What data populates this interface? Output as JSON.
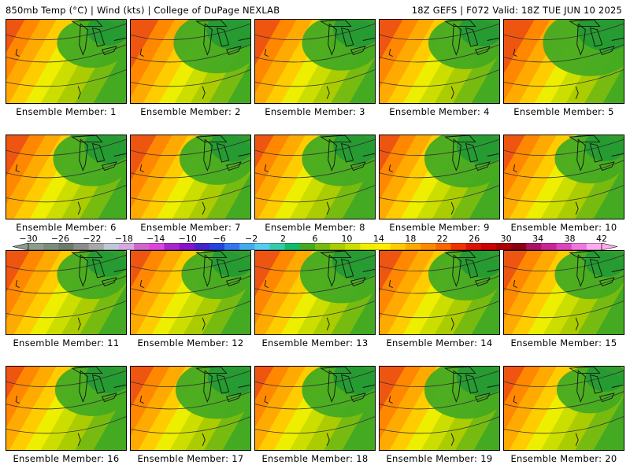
{
  "header": {
    "left": "850mb Temp (°C) | Wind (kts) | College of DuPage NEXLAB",
    "right": "18Z GEFS | F072 Valid: 18Z TUE JUN 10 2025"
  },
  "colorbar": {
    "labels": [
      "−30",
      "−26",
      "−22",
      "−18",
      "−14",
      "−10",
      "−6",
      "−2",
      "2",
      "6",
      "10",
      "14",
      "18",
      "22",
      "26",
      "30",
      "34",
      "38",
      "42"
    ],
    "colors": [
      "#8c9c8c",
      "#7c8c7c",
      "#6c7c6c",
      "#8c8c8c",
      "#a8a8a8",
      "#bcc8d8",
      "#d4a8e0",
      "#cc66cc",
      "#dd44dd",
      "#aa22cc",
      "#8811cc",
      "#4422cc",
      "#2244dd",
      "#3377ee",
      "#44aaee",
      "#55ccee",
      "#33ccaa",
      "#11bb66",
      "#44aa22",
      "#77bb11",
      "#aacc00",
      "#ccdd00",
      "#eeee00",
      "#ffee00",
      "#ffcc00",
      "#ffaa00",
      "#ff8800",
      "#ff6600",
      "#ee3300",
      "#dd1100",
      "#cc0000",
      "#aa0000",
      "#880011",
      "#aa1166",
      "#cc2299",
      "#dd44bb",
      "#ee77dd",
      "#ffaaee"
    ]
  },
  "members": [
    {
      "label": "Ensemble Member: 1"
    },
    {
      "label": "Ensemble Member: 2"
    },
    {
      "label": "Ensemble Member: 3"
    },
    {
      "label": "Ensemble Member: 4"
    },
    {
      "label": "Ensemble Member: 5"
    },
    {
      "label": "Ensemble Member: 6"
    },
    {
      "label": "Ensemble Member: 7"
    },
    {
      "label": "Ensemble Member: 8"
    },
    {
      "label": "Ensemble Member: 9"
    },
    {
      "label": "Ensemble Member: 10"
    },
    {
      "label": "Ensemble Member: 11"
    },
    {
      "label": "Ensemble Member: 12"
    },
    {
      "label": "Ensemble Member: 13"
    },
    {
      "label": "Ensemble Member: 14"
    },
    {
      "label": "Ensemble Member: 15"
    },
    {
      "label": "Ensemble Member: 16"
    },
    {
      "label": "Ensemble Member: 17"
    },
    {
      "label": "Ensemble Member: 18"
    },
    {
      "label": "Ensemble Member: 19"
    },
    {
      "label": "Ensemble Member: 20"
    }
  ]
}
